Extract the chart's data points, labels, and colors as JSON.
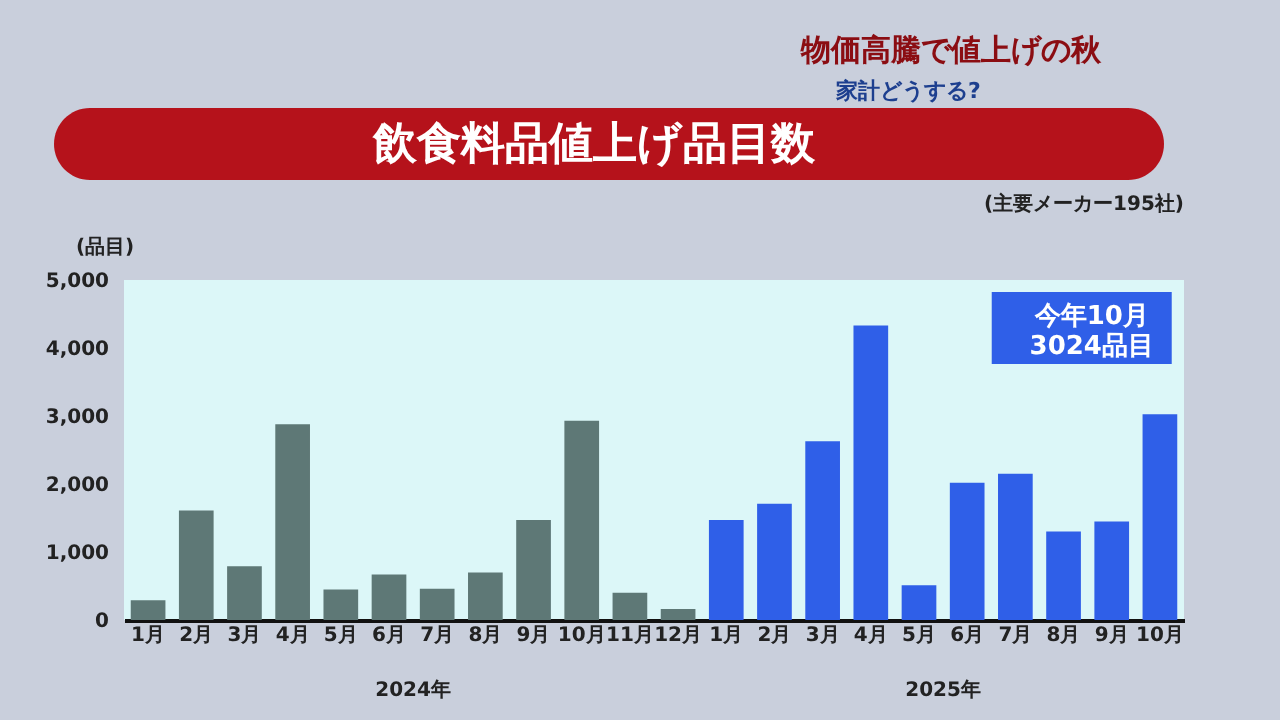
{
  "chart_data": {
    "type": "bar",
    "title": "飲食料品値上げ品目数",
    "subtitle": "(主要メーカー195社)",
    "ylabel": "(品目)",
    "categories": [
      "1月",
      "2月",
      "3月",
      "4月",
      "5月",
      "6月",
      "7月",
      "8月",
      "9月",
      "10月",
      "11月",
      "12月",
      "1月",
      "2月",
      "3月",
      "4月",
      "5月",
      "6月",
      "7月",
      "8月",
      "9月",
      "10月"
    ],
    "values": [
      290,
      1610,
      790,
      2880,
      450,
      670,
      460,
      700,
      1470,
      2930,
      400,
      160,
      1470,
      1710,
      2630,
      4330,
      510,
      2020,
      2150,
      1300,
      1450,
      3024
    ],
    "colors": [
      "#5e7876",
      "#5e7876",
      "#5e7876",
      "#5e7876",
      "#5e7876",
      "#5e7876",
      "#5e7876",
      "#5e7876",
      "#5e7876",
      "#5e7876",
      "#5e7876",
      "#5e7876",
      "#2f5fe8",
      "#2f5fe8",
      "#2f5fe8",
      "#2f5fe8",
      "#2f5fe8",
      "#2f5fe8",
      "#2f5fe8",
      "#2f5fe8",
      "#2f5fe8",
      "#2f5fe8"
    ],
    "ylim": [
      0,
      5000
    ],
    "yticks": [
      {
        "value": 0,
        "label": "0"
      },
      {
        "value": 1000,
        "label": "1,000"
      },
      {
        "value": 2000,
        "label": "2,000"
      },
      {
        "value": 3000,
        "label": "3,000"
      },
      {
        "value": 4000,
        "label": "4,000"
      },
      {
        "value": 5000,
        "label": "5,000"
      }
    ],
    "grid": false,
    "annotations": [
      "物価高騰で値上げの秋",
      "家計どうする?",
      "今年10月\n3024品目",
      "2024年",
      "2025年"
    ]
  }
}
